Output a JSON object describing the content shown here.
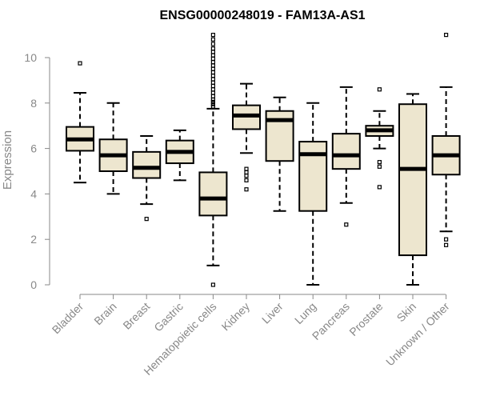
{
  "chart_data": {
    "type": "boxplot",
    "title": "ENSG00000248019 - FAM13A-AS1",
    "xlabel": "",
    "ylabel": "Expression",
    "ylim": [
      0,
      11
    ],
    "yticks": [
      0,
      2,
      4,
      6,
      8,
      10
    ],
    "grid": false,
    "colors": {
      "box_fill": "#ede6cf",
      "box_stroke": "#000000",
      "axis": "#888888"
    },
    "categories": [
      "Bladder",
      "Brain",
      "Breast",
      "Gastric",
      "Hematopoietic cells",
      "Kidney",
      "Liver",
      "Lung",
      "Pancreas",
      "Prostate",
      "Skin",
      "Unknown / Other"
    ],
    "boxes": [
      {
        "name": "Bladder",
        "whisker_low": 4.5,
        "q1": 5.9,
        "median": 6.4,
        "q3": 6.95,
        "whisker_high": 8.45,
        "outliers": [
          9.75
        ]
      },
      {
        "name": "Brain",
        "whisker_low": 4.0,
        "q1": 5.0,
        "median": 5.7,
        "q3": 6.4,
        "whisker_high": 8.0,
        "outliers": []
      },
      {
        "name": "Breast",
        "whisker_low": 3.55,
        "q1": 4.7,
        "median": 5.15,
        "q3": 5.85,
        "whisker_high": 6.55,
        "outliers": [
          2.9
        ]
      },
      {
        "name": "Gastric",
        "whisker_low": 4.6,
        "q1": 5.35,
        "median": 5.85,
        "q3": 6.35,
        "whisker_high": 6.8,
        "outliers": []
      },
      {
        "name": "Hematopoietic cells",
        "whisker_low": 0.85,
        "q1": 3.05,
        "median": 3.8,
        "q3": 4.95,
        "whisker_high": 7.75,
        "outliers": [
          0.0,
          7.85,
          7.95,
          8.05,
          8.15,
          8.3,
          8.45,
          8.6,
          8.75,
          8.9,
          9.05,
          9.2,
          9.35,
          9.5,
          9.65,
          9.8,
          9.95,
          10.1,
          10.25,
          10.4,
          10.6,
          10.8,
          11.0
        ]
      },
      {
        "name": "Kidney",
        "whisker_low": 5.8,
        "q1": 6.85,
        "median": 7.45,
        "q3": 7.9,
        "whisker_high": 8.85,
        "outliers": [
          4.2,
          4.6,
          4.8,
          4.95,
          5.1
        ]
      },
      {
        "name": "Liver",
        "whisker_low": 3.25,
        "q1": 5.45,
        "median": 7.25,
        "q3": 7.65,
        "whisker_high": 8.25,
        "outliers": []
      },
      {
        "name": "Lung",
        "whisker_low": 0.0,
        "q1": 3.25,
        "median": 5.75,
        "q3": 6.3,
        "whisker_high": 8.0,
        "outliers": []
      },
      {
        "name": "Pancreas",
        "whisker_low": 3.6,
        "q1": 5.1,
        "median": 5.7,
        "q3": 6.65,
        "whisker_high": 8.7,
        "outliers": [
          2.65
        ]
      },
      {
        "name": "Prostate",
        "whisker_low": 6.0,
        "q1": 6.55,
        "median": 6.8,
        "q3": 7.0,
        "whisker_high": 7.65,
        "outliers": [
          8.6,
          5.4,
          5.2,
          4.3
        ]
      },
      {
        "name": "Skin",
        "whisker_low": 0.0,
        "q1": 1.3,
        "median": 5.1,
        "q3": 7.95,
        "whisker_high": 8.4,
        "outliers": []
      },
      {
        "name": "Unknown / Other",
        "whisker_low": 2.35,
        "q1": 4.85,
        "median": 5.7,
        "q3": 6.55,
        "whisker_high": 8.7,
        "outliers": [
          11.0,
          2.0,
          1.75
        ]
      }
    ]
  }
}
